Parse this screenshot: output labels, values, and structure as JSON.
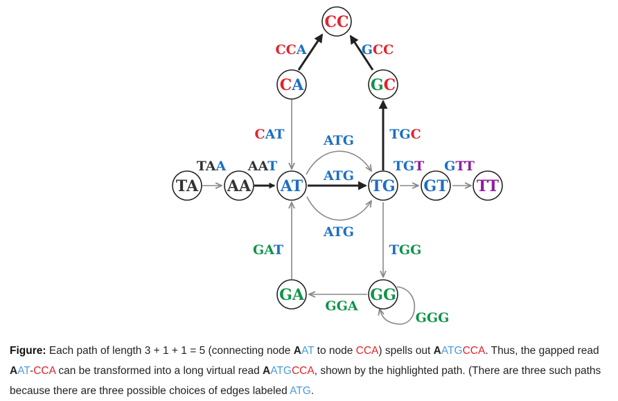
{
  "colors": {
    "A": "#1d6fc2",
    "C": "#e4212b",
    "G": "#0f9448",
    "T": "#8e1f9e",
    "plain": "#333333",
    "gray": "#888888",
    "dark": "#222222"
  },
  "nodes": {
    "CC": {
      "label": "CC",
      "colors": [
        "C",
        "C"
      ]
    },
    "CA": {
      "label": "CA",
      "colors": [
        "C",
        "A"
      ]
    },
    "GC": {
      "label": "GC",
      "colors": [
        "G",
        "C"
      ]
    },
    "TA": {
      "label": "TA",
      "colors": [
        "plain",
        "plain"
      ]
    },
    "AA": {
      "label": "AA",
      "colors": [
        "plain",
        "plain"
      ]
    },
    "AT": {
      "label": "AT",
      "colors": [
        "A",
        "A"
      ]
    },
    "TG": {
      "label": "TG",
      "colors": [
        "A",
        "A"
      ]
    },
    "GT": {
      "label": "GT",
      "colors": [
        "A",
        "A"
      ]
    },
    "TT": {
      "label": "TT",
      "colors": [
        "T",
        "T"
      ]
    },
    "GA": {
      "label": "GA",
      "colors": [
        "G",
        "G"
      ]
    },
    "GG": {
      "label": "GG",
      "colors": [
        "G",
        "G"
      ]
    }
  },
  "edges": [
    {
      "id": "CA-CC",
      "text": "CCA",
      "colors": [
        "C",
        "C",
        "A"
      ],
      "style": "dark"
    },
    {
      "id": "GC-CC",
      "text": "GCC",
      "colors": [
        "A",
        "C",
        "C"
      ],
      "style": "dark"
    },
    {
      "id": "TG-GC",
      "text": "TGC",
      "colors": [
        "A",
        "A",
        "C"
      ],
      "style": "dark"
    },
    {
      "id": "CA-AT",
      "text": "CAT",
      "colors": [
        "C",
        "A",
        "A"
      ],
      "style": "gray"
    },
    {
      "id": "TA-AA",
      "text": "TAA",
      "colors": [
        "plain",
        "plain",
        "A"
      ],
      "style": "gray"
    },
    {
      "id": "AA-AT",
      "text": "AAT",
      "colors": [
        "plain",
        "plain",
        "A"
      ],
      "style": "dark"
    },
    {
      "id": "AT-TG-top",
      "text": "ATG",
      "colors": [
        "A",
        "A",
        "A"
      ],
      "style": "gray"
    },
    {
      "id": "AT-TG-mid",
      "text": "ATG",
      "colors": [
        "A",
        "A",
        "A"
      ],
      "style": "dark"
    },
    {
      "id": "AT-TG-bot",
      "text": "ATG",
      "colors": [
        "A",
        "A",
        "A"
      ],
      "style": "gray"
    },
    {
      "id": "TG-GT",
      "text": "TGT",
      "colors": [
        "A",
        "A",
        "T"
      ],
      "style": "gray"
    },
    {
      "id": "GT-TT",
      "text": "GTT",
      "colors": [
        "A",
        "T",
        "T"
      ],
      "style": "gray"
    },
    {
      "id": "GA-AT",
      "text": "GAT",
      "colors": [
        "G",
        "G",
        "A"
      ],
      "style": "gray"
    },
    {
      "id": "TG-GG",
      "text": "TGG",
      "colors": [
        "A",
        "G",
        "G"
      ],
      "style": "gray"
    },
    {
      "id": "GG-GA",
      "text": "GGA",
      "colors": [
        "G",
        "G",
        "G"
      ],
      "style": "gray"
    },
    {
      "id": "GG-GG",
      "text": "GGG",
      "colors": [
        "G",
        "G",
        "G"
      ],
      "style": "gray"
    }
  ],
  "caption": {
    "label": "Figure:",
    "p1": " Each path of length 3 + 1 + 1 = 5 (connecting node ",
    "s1a": "A",
    "s1b": "AT",
    "p2": " to node ",
    "s2": "CCA",
    "p3": ") spells out ",
    "s3a": "A",
    "s3b": "ATG",
    "s3c": "CCA",
    "p4": ". Thus, the gapped read ",
    "s4a": "A",
    "s4b": "AT",
    "s4c": "-",
    "s4d": "CCA",
    "p5": " can be transformed into a long virtual read ",
    "s5a": "A",
    "s5b": "ATG",
    "s5c": "CCA",
    "p6": ", shown by the highlighted path. (There are three such paths because there are three possible choices of edges labeled ",
    "s6": "ATG",
    "p7": "."
  }
}
